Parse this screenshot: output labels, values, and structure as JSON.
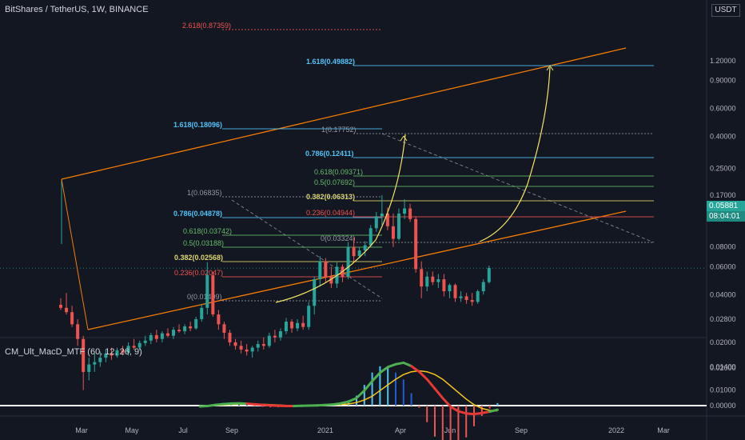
{
  "header": {
    "title": "BitShares / TetherUS, 1W, BINANCE",
    "currency": "USDT"
  },
  "indicator": {
    "title": "CM_Ult_MacD_MTF (60, 12, 26, 9)"
  },
  "current_price": {
    "value": "0.05881",
    "countdown": "08:04:01"
  },
  "colors": {
    "background": "#131722",
    "up": "#26a69a",
    "down": "#ef5350",
    "channel": "#f57c00",
    "fib_blue": "#4fc3f7",
    "fib_red": "#ef5350",
    "fib_green": "#66bb6a",
    "fib_yellow": "#ddd86a",
    "fib_gray": "#9598a1",
    "curve": "#f5e663",
    "macd": "#4caf50",
    "signal": "#f5c518"
  },
  "chart_data": [
    {
      "type": "candlestick",
      "scale": "log",
      "y_ticks": [
        "1.20000",
        "0.90000",
        "0.60000",
        "0.40000",
        "0.25000",
        "0.17000",
        "0.12000",
        "0.08000",
        "0.06000",
        "0.04000",
        "0.02800",
        "0.02000",
        "0.01400",
        "0.01000"
      ],
      "x_ticks": [
        "Mar",
        "May",
        "Jul",
        "Sep",
        "2021",
        "Apr",
        "Jun",
        "Sep",
        "2022",
        "Mar"
      ],
      "fib_levels": [
        {
          "label": "2.618(0.87359)",
          "color": "#ef5350"
        },
        {
          "label": "1.618(0.49882)",
          "color": "#4fc3f7"
        },
        {
          "label": "1.618(0.18096)",
          "color": "#4fc3f7"
        },
        {
          "label": "1(0.17752)",
          "color": "#9598a1"
        },
        {
          "label": "0.786(0.12411)",
          "color": "#4fc3f7"
        },
        {
          "label": "0.618(0.09371)",
          "color": "#66bb6a"
        },
        {
          "label": "0.5(0.07692)",
          "color": "#66bb6a"
        },
        {
          "label": "0.382(0.06313)",
          "color": "#ddd86a"
        },
        {
          "label": "0.236(0.04944)",
          "color": "#ef5350"
        },
        {
          "label": "0(0.03324)",
          "color": "#9598a1"
        },
        {
          "label": "1(0.06835)",
          "color": "#9598a1"
        },
        {
          "label": "0.786(0.04878)",
          "color": "#4fc3f7"
        },
        {
          "label": "0.618(0.03742)",
          "color": "#66bb6a"
        },
        {
          "label": "0.5(0.03188)",
          "color": "#66bb6a"
        },
        {
          "label": "0.382(0.02568)",
          "color": "#ddd86a"
        },
        {
          "label": "0.236(0.02047)",
          "color": "#ef5350"
        },
        {
          "label": "0(0.01409)",
          "color": "#9598a1"
        }
      ],
      "candles": [
        [
          0.0345,
          0.038,
          0.032,
          0.033
        ],
        [
          0.033,
          0.041,
          0.03,
          0.031
        ],
        [
          0.031,
          0.034,
          0.025,
          0.026
        ],
        [
          0.026,
          0.028,
          0.019,
          0.021
        ],
        [
          0.021,
          0.022,
          0.01,
          0.013
        ],
        [
          0.013,
          0.016,
          0.0115,
          0.0145
        ],
        [
          0.0145,
          0.017,
          0.013,
          0.015
        ],
        [
          0.015,
          0.0175,
          0.014,
          0.016
        ],
        [
          0.016,
          0.018,
          0.015,
          0.017
        ],
        [
          0.017,
          0.0185,
          0.0155,
          0.0165
        ],
        [
          0.0165,
          0.0185,
          0.016,
          0.0178
        ],
        [
          0.0178,
          0.019,
          0.0165,
          0.0172
        ],
        [
          0.0172,
          0.02,
          0.0165,
          0.019
        ],
        [
          0.019,
          0.021,
          0.018,
          0.0185
        ],
        [
          0.0185,
          0.0205,
          0.0178,
          0.0198
        ],
        [
          0.0198,
          0.022,
          0.019,
          0.0205
        ],
        [
          0.0205,
          0.023,
          0.0195,
          0.0222
        ],
        [
          0.0222,
          0.024,
          0.02,
          0.021
        ],
        [
          0.021,
          0.0235,
          0.02,
          0.0228
        ],
        [
          0.0228,
          0.0245,
          0.0215,
          0.022
        ],
        [
          0.022,
          0.025,
          0.021,
          0.024
        ],
        [
          0.024,
          0.026,
          0.023,
          0.0235
        ],
        [
          0.0235,
          0.026,
          0.0225,
          0.0252
        ],
        [
          0.0252,
          0.027,
          0.0235,
          0.0245
        ],
        [
          0.0245,
          0.029,
          0.024,
          0.028
        ],
        [
          0.028,
          0.035,
          0.027,
          0.033
        ],
        [
          0.033,
          0.064,
          0.03,
          0.053
        ],
        [
          0.053,
          0.056,
          0.029,
          0.03
        ],
        [
          0.03,
          0.032,
          0.024,
          0.026
        ],
        [
          0.026,
          0.027,
          0.021,
          0.023
        ],
        [
          0.023,
          0.024,
          0.019,
          0.02
        ],
        [
          0.02,
          0.021,
          0.018,
          0.019
        ],
        [
          0.019,
          0.0205,
          0.017,
          0.018
        ],
        [
          0.018,
          0.0195,
          0.0165,
          0.0175
        ],
        [
          0.0175,
          0.019,
          0.016,
          0.0185
        ],
        [
          0.0185,
          0.0205,
          0.0175,
          0.0195
        ],
        [
          0.0195,
          0.0215,
          0.018,
          0.019
        ],
        [
          0.019,
          0.023,
          0.0185,
          0.022
        ],
        [
          0.022,
          0.024,
          0.02,
          0.0215
        ],
        [
          0.0215,
          0.0245,
          0.0205,
          0.0235
        ],
        [
          0.0235,
          0.0285,
          0.0225,
          0.027
        ],
        [
          0.027,
          0.028,
          0.023,
          0.0245
        ],
        [
          0.0245,
          0.028,
          0.0235,
          0.0265
        ],
        [
          0.0265,
          0.0295,
          0.024,
          0.025
        ],
        [
          0.025,
          0.036,
          0.024,
          0.034
        ],
        [
          0.034,
          0.052,
          0.03,
          0.05
        ],
        [
          0.05,
          0.07,
          0.045,
          0.065
        ],
        [
          0.065,
          0.068,
          0.048,
          0.052
        ],
        [
          0.052,
          0.06,
          0.044,
          0.047
        ],
        [
          0.047,
          0.065,
          0.044,
          0.06
        ],
        [
          0.06,
          0.062,
          0.048,
          0.052
        ],
        [
          0.052,
          0.086,
          0.05,
          0.08
        ],
        [
          0.08,
          0.092,
          0.065,
          0.07
        ],
        [
          0.07,
          0.08,
          0.068,
          0.076
        ],
        [
          0.076,
          0.087,
          0.07,
          0.082
        ],
        [
          0.082,
          0.11,
          0.08,
          0.105
        ],
        [
          0.105,
          0.133,
          0.1,
          0.125
        ],
        [
          0.125,
          0.17,
          0.11,
          0.13
        ],
        [
          0.13,
          0.142,
          0.102,
          0.108
        ],
        [
          0.108,
          0.13,
          0.08,
          0.09
        ],
        [
          0.09,
          0.14,
          0.088,
          0.13
        ],
        [
          0.13,
          0.16,
          0.12,
          0.14
        ],
        [
          0.14,
          0.15,
          0.115,
          0.12
        ],
        [
          0.12,
          0.125,
          0.055,
          0.058
        ],
        [
          0.058,
          0.065,
          0.038,
          0.045
        ],
        [
          0.045,
          0.056,
          0.042,
          0.052
        ],
        [
          0.052,
          0.056,
          0.046,
          0.048
        ],
        [
          0.048,
          0.054,
          0.044,
          0.05
        ],
        [
          0.05,
          0.054,
          0.039,
          0.042
        ],
        [
          0.042,
          0.047,
          0.038,
          0.046
        ],
        [
          0.046,
          0.047,
          0.036,
          0.038
        ],
        [
          0.038,
          0.042,
          0.036,
          0.039
        ],
        [
          0.039,
          0.041,
          0.035,
          0.037
        ],
        [
          0.037,
          0.041,
          0.034,
          0.036
        ],
        [
          0.036,
          0.043,
          0.035,
          0.042
        ],
        [
          0.042,
          0.05,
          0.04,
          0.048
        ],
        [
          0.048,
          0.061,
          0.047,
          0.0588
        ]
      ]
    },
    {
      "type": "line",
      "name": "MACD",
      "y_ticks": [
        "0.02000",
        "0.00000"
      ],
      "series": [
        {
          "values": [
            -0.0004,
            -0.0002,
            0.0004,
            0.0008,
            0.0011,
            0.0012,
            0.001,
            0.0007,
            0.0004,
            0.0001,
            -0.0001,
            -0.0002,
            -0.0002,
            -0.0001,
            0.0,
            0.0001,
            0.0003,
            0.0006,
            0.0012,
            0.0022,
            0.004,
            0.008,
            0.013,
            0.0175,
            0.0205,
            0.022,
            0.0228,
            0.021,
            0.018,
            0.014,
            0.009,
            0.004,
            -0.0005,
            -0.003,
            -0.0042,
            -0.0045,
            -0.004,
            -0.0032,
            -0.0022
          ]
        },
        {
          "values": [
            -0.0003,
            -0.0002,
            0.0001,
            0.0004,
            0.0006,
            0.0008,
            0.0008,
            0.0008,
            0.0007,
            0.0005,
            0.0003,
            0.0001,
            0.0,
            -0.0001,
            -0.0001,
            0.0,
            0.0001,
            0.0003,
            0.0005,
            0.0009,
            0.0016,
            0.003,
            0.005,
            0.008,
            0.011,
            0.014,
            0.0165,
            0.018,
            0.0185,
            0.018,
            0.0165,
            0.014,
            0.0105,
            0.007,
            0.0035,
            0.0005,
            -0.0015,
            -0.0025,
            -0.0028
          ]
        }
      ]
    }
  ]
}
